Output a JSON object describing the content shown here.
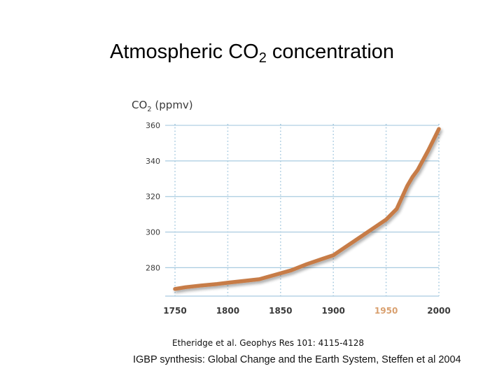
{
  "title": {
    "main": "Atmospheric CO",
    "sub": "2",
    "rest": " concentration"
  },
  "chart_data": {
    "type": "line",
    "title": "",
    "ylabel": {
      "main": "CO",
      "sub": "2",
      "rest": " (ppmv)"
    },
    "xlabel": "",
    "xlim": [
      1750,
      2000
    ],
    "ylim": [
      264,
      362
    ],
    "xticks": [
      1750,
      1800,
      1850,
      1900,
      1950,
      2000
    ],
    "xtick_labels": [
      "1750",
      "1800",
      "1850",
      "1900",
      "1950",
      "2000"
    ],
    "highlight_tick": "1950",
    "yticks": [
      280,
      300,
      320,
      340,
      360
    ],
    "ytick_labels": [
      "280",
      "300",
      "320",
      "340",
      "360"
    ],
    "grid": true,
    "series": [
      {
        "name": "CO2",
        "x": [
          1750,
          1760,
          1775,
          1790,
          1800,
          1815,
          1830,
          1845,
          1860,
          1875,
          1890,
          1900,
          1910,
          1925,
          1940,
          1950,
          1960,
          1970,
          1975,
          1980,
          1990,
          2000
        ],
        "y": [
          268,
          269,
          270,
          270.8,
          271.5,
          272.5,
          273.5,
          276,
          278.5,
          282,
          285,
          287,
          291,
          297,
          303,
          307,
          313,
          326,
          331,
          335,
          346,
          358
        ]
      }
    ],
    "colors": {
      "line": "#c77b47",
      "grid": "#a9cbe0",
      "tick_label": "#3a3a3a",
      "highlight": "#d9a06f"
    }
  },
  "citation": "Etheridge et al. Geophys Res 101: 4115-4128",
  "source": "IGBP synthesis: Global Change and the Earth System, Steffen et al 2004"
}
